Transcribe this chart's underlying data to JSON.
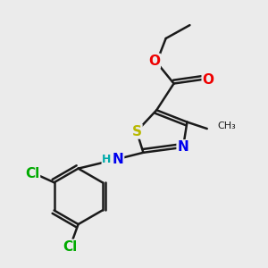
{
  "background_color": "#ebebeb",
  "bond_color": "#1a1a1a",
  "bond_width": 1.8,
  "atom_colors": {
    "S": "#b8b800",
    "N": "#0000ee",
    "O": "#ee0000",
    "Cl": "#00aa00",
    "C": "#1a1a1a",
    "H": "#1a1a1a"
  },
  "font_size": 10
}
